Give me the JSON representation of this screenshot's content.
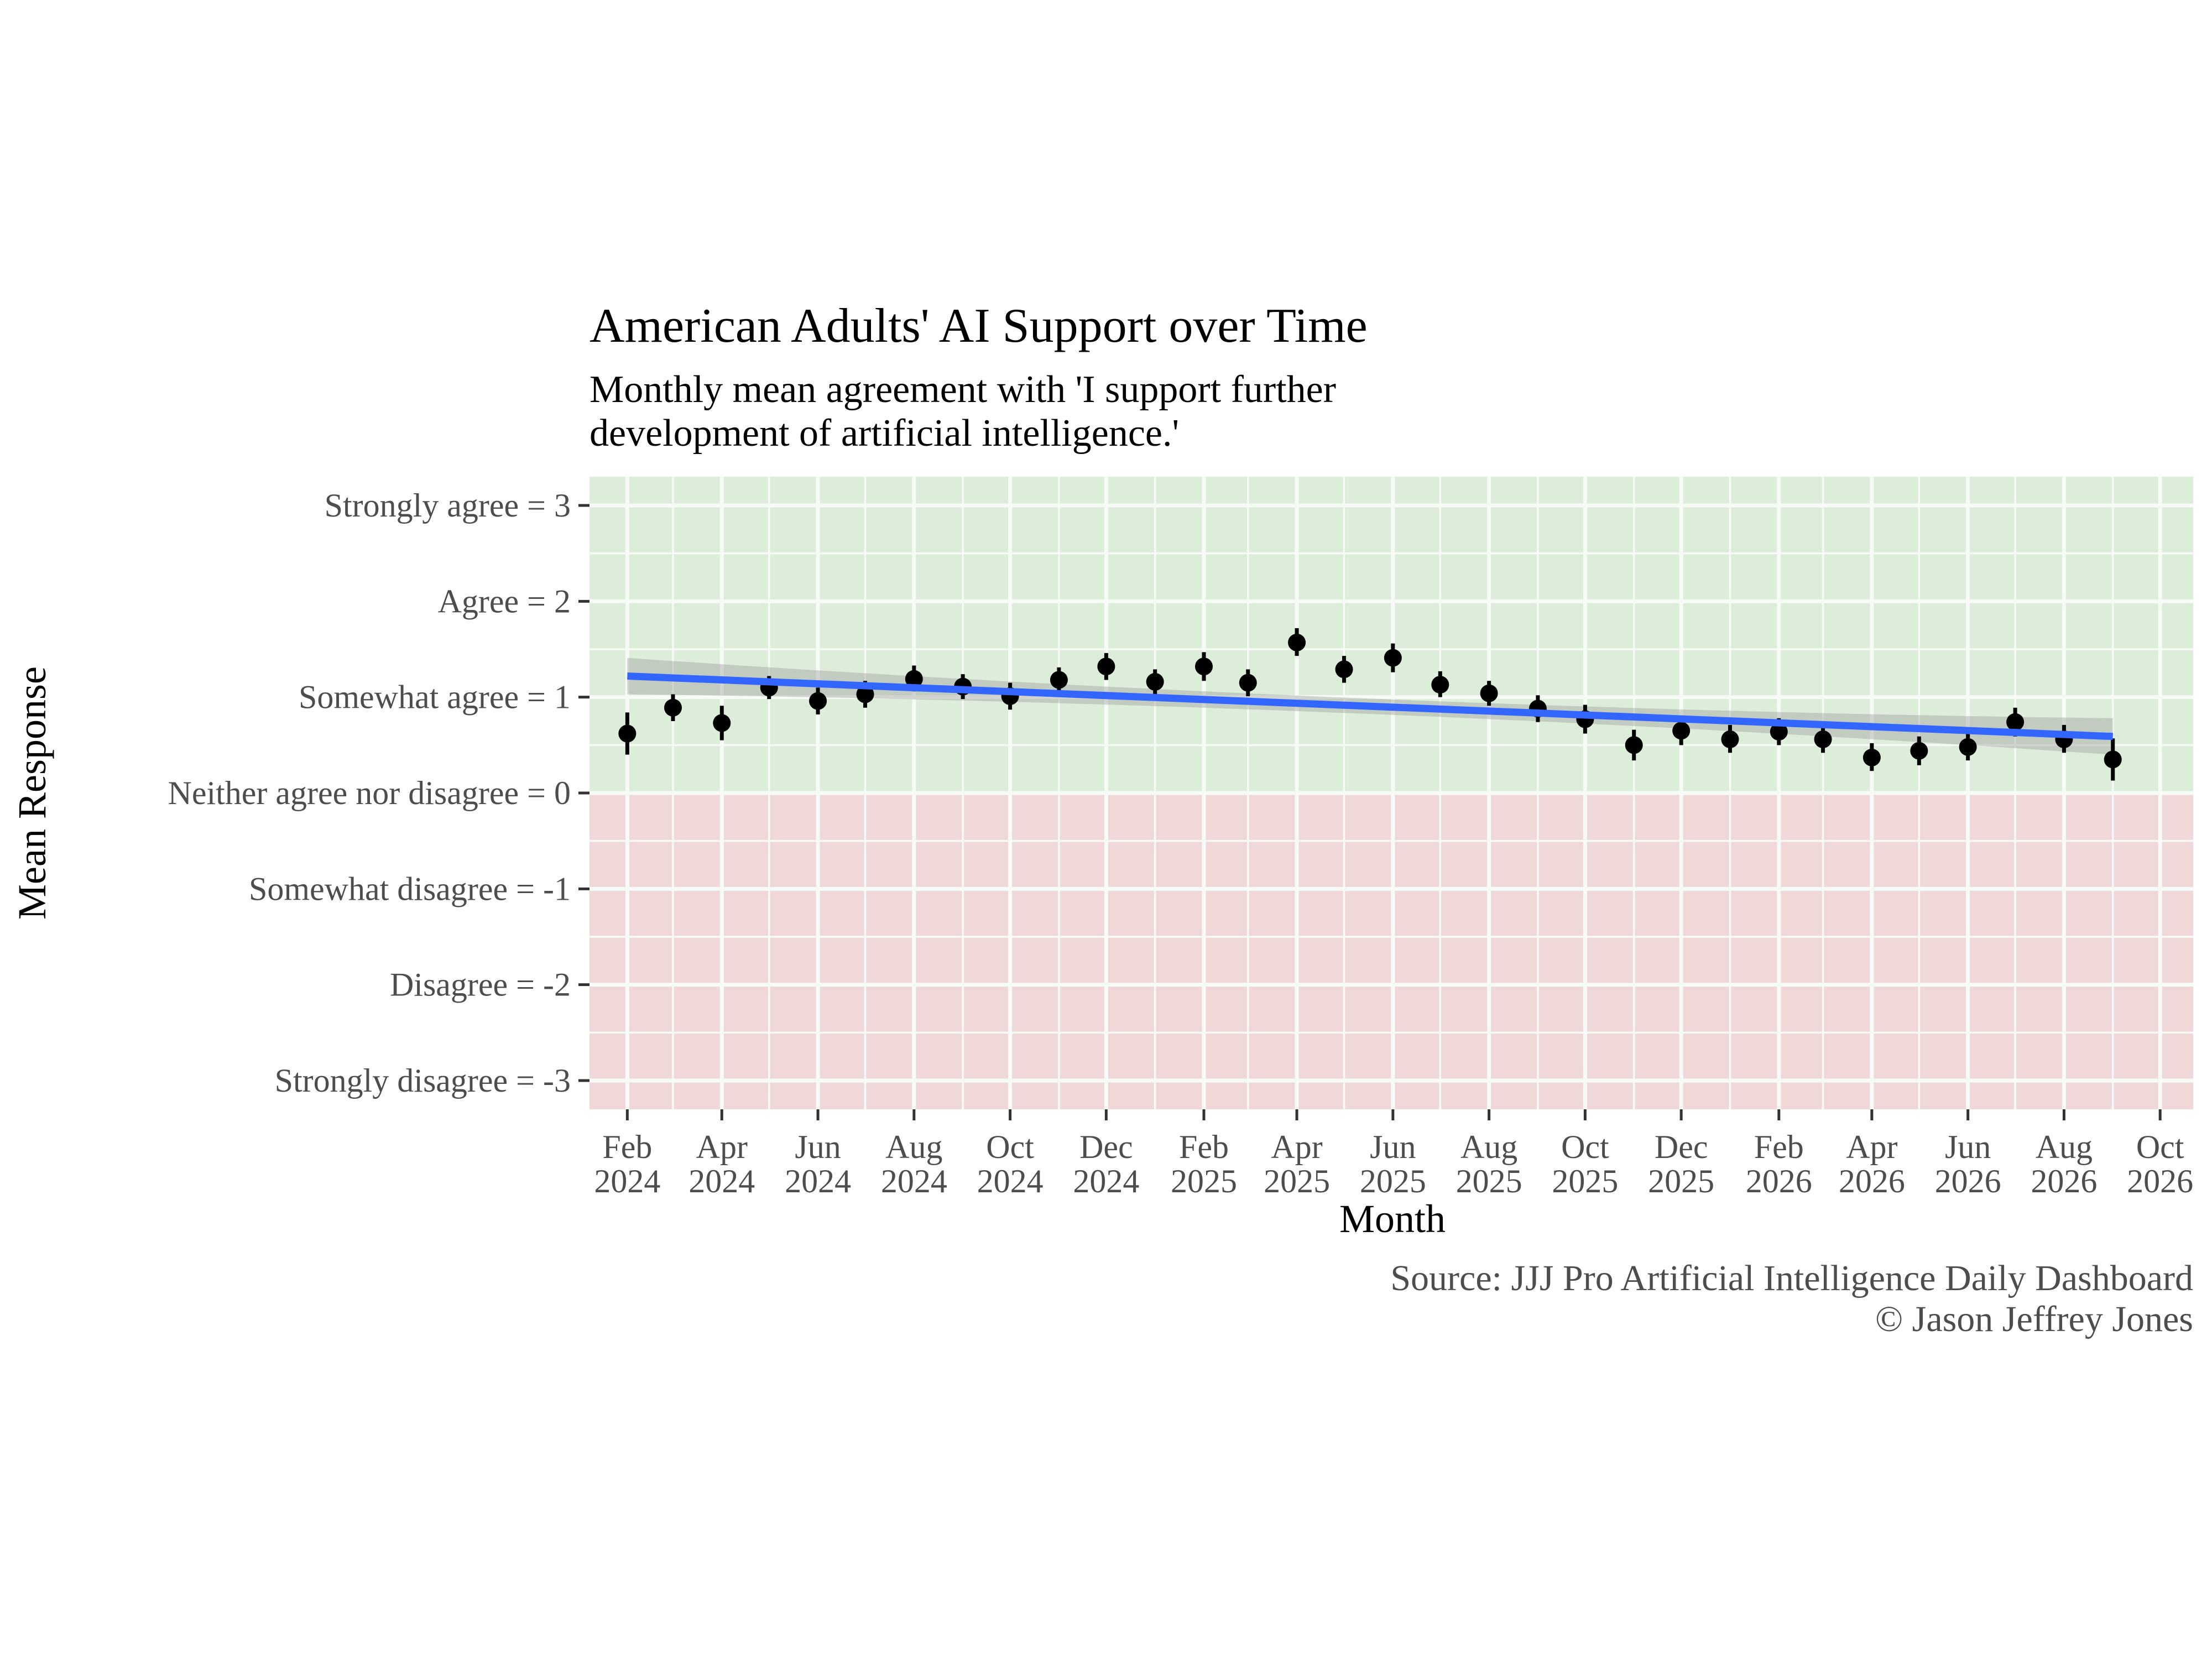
{
  "chart_data": {
    "type": "scatter",
    "title": "American Adults' AI Support over Time",
    "subtitle_lines": [
      "Monthly mean agreement with 'I support further",
      "development of artificial intelligence.'"
    ],
    "xlabel": "Month",
    "ylabel": "Mean Response",
    "caption_lines": [
      "Source: JJJ Pro Artificial Intelligence Daily Dashboard",
      "© Jason Jeffrey Jones"
    ],
    "ylim": [
      -3.3,
      3.3
    ],
    "xlim": [
      "2024-01-08",
      "2026-10-22"
    ],
    "y_ticks": [
      {
        "value": 3,
        "label": "Strongly agree = 3"
      },
      {
        "value": 2,
        "label": "Agree = 2"
      },
      {
        "value": 1,
        "label": "Somewhat agree = 1"
      },
      {
        "value": 0,
        "label": "Neither agree nor disagree = 0"
      },
      {
        "value": -1,
        "label": "Somewhat disagree = -1"
      },
      {
        "value": -2,
        "label": "Disagree = -2"
      },
      {
        "value": -3,
        "label": "Strongly disagree = -3"
      }
    ],
    "x_ticks": [
      {
        "date": "2024-02-01",
        "month": "Feb",
        "year": "2024"
      },
      {
        "date": "2024-04-01",
        "month": "Apr",
        "year": "2024"
      },
      {
        "date": "2024-06-01",
        "month": "Jun",
        "year": "2024"
      },
      {
        "date": "2024-08-01",
        "month": "Aug",
        "year": "2024"
      },
      {
        "date": "2024-10-01",
        "month": "Oct",
        "year": "2024"
      },
      {
        "date": "2024-12-01",
        "month": "Dec",
        "year": "2024"
      },
      {
        "date": "2025-02-01",
        "month": "Feb",
        "year": "2025"
      },
      {
        "date": "2025-04-01",
        "month": "Apr",
        "year": "2025"
      },
      {
        "date": "2025-06-01",
        "month": "Jun",
        "year": "2025"
      },
      {
        "date": "2025-08-01",
        "month": "Aug",
        "year": "2025"
      },
      {
        "date": "2025-10-01",
        "month": "Oct",
        "year": "2025"
      },
      {
        "date": "2025-12-01",
        "month": "Dec",
        "year": "2025"
      },
      {
        "date": "2026-02-01",
        "month": "Feb",
        "year": "2026"
      },
      {
        "date": "2026-04-01",
        "month": "Apr",
        "year": "2026"
      },
      {
        "date": "2026-06-01",
        "month": "Jun",
        "year": "2026"
      },
      {
        "date": "2026-08-01",
        "month": "Aug",
        "year": "2026"
      },
      {
        "date": "2026-10-01",
        "month": "Oct",
        "year": "2026"
      }
    ],
    "points": [
      {
        "month": "2024-02-01",
        "mean": 0.62,
        "lo": 0.4,
        "hi": 0.84
      },
      {
        "month": "2024-03-01",
        "mean": 0.89,
        "lo": 0.75,
        "hi": 1.03
      },
      {
        "month": "2024-04-01",
        "mean": 0.73,
        "lo": 0.55,
        "hi": 0.91
      },
      {
        "month": "2024-05-01",
        "mean": 1.1,
        "lo": 0.98,
        "hi": 1.22
      },
      {
        "month": "2024-06-01",
        "mean": 0.96,
        "lo": 0.82,
        "hi": 1.1
      },
      {
        "month": "2024-07-01",
        "mean": 1.03,
        "lo": 0.89,
        "hi": 1.17
      },
      {
        "month": "2024-08-01",
        "mean": 1.19,
        "lo": 1.06,
        "hi": 1.33
      },
      {
        "month": "2024-09-01",
        "mean": 1.11,
        "lo": 0.98,
        "hi": 1.24
      },
      {
        "month": "2024-10-01",
        "mean": 1.01,
        "lo": 0.87,
        "hi": 1.15
      },
      {
        "month": "2024-11-01",
        "mean": 1.18,
        "lo": 1.05,
        "hi": 1.31
      },
      {
        "month": "2024-12-01",
        "mean": 1.32,
        "lo": 1.18,
        "hi": 1.46
      },
      {
        "month": "2025-01-01",
        "mean": 1.16,
        "lo": 1.03,
        "hi": 1.29
      },
      {
        "month": "2025-02-01",
        "mean": 1.32,
        "lo": 1.17,
        "hi": 1.47
      },
      {
        "month": "2025-03-01",
        "mean": 1.15,
        "lo": 1.01,
        "hi": 1.29
      },
      {
        "month": "2025-04-01",
        "mean": 1.57,
        "lo": 1.43,
        "hi": 1.72
      },
      {
        "month": "2025-05-01",
        "mean": 1.29,
        "lo": 1.15,
        "hi": 1.43
      },
      {
        "month": "2025-06-01",
        "mean": 1.41,
        "lo": 1.26,
        "hi": 1.56
      },
      {
        "month": "2025-07-01",
        "mean": 1.13,
        "lo": 1.0,
        "hi": 1.27
      },
      {
        "month": "2025-08-01",
        "mean": 1.04,
        "lo": 0.91,
        "hi": 1.17
      },
      {
        "month": "2025-09-01",
        "mean": 0.88,
        "lo": 0.74,
        "hi": 1.02
      },
      {
        "month": "2025-10-01",
        "mean": 0.77,
        "lo": 0.62,
        "hi": 0.92
      },
      {
        "month": "2025-11-01",
        "mean": 0.5,
        "lo": 0.34,
        "hi": 0.66
      },
      {
        "month": "2025-12-01",
        "mean": 0.65,
        "lo": 0.5,
        "hi": 0.8
      },
      {
        "month": "2026-01-01",
        "mean": 0.56,
        "lo": 0.42,
        "hi": 0.71
      },
      {
        "month": "2026-02-01",
        "mean": 0.64,
        "lo": 0.5,
        "hi": 0.78
      },
      {
        "month": "2026-03-01",
        "mean": 0.56,
        "lo": 0.42,
        "hi": 0.71
      },
      {
        "month": "2026-04-01",
        "mean": 0.37,
        "lo": 0.23,
        "hi": 0.52
      },
      {
        "month": "2026-05-01",
        "mean": 0.44,
        "lo": 0.29,
        "hi": 0.59
      },
      {
        "month": "2026-06-01",
        "mean": 0.48,
        "lo": 0.34,
        "hi": 0.63
      },
      {
        "month": "2026-07-01",
        "mean": 0.74,
        "lo": 0.59,
        "hi": 0.89
      },
      {
        "month": "2026-08-01",
        "mean": 0.56,
        "lo": 0.42,
        "hi": 0.71
      },
      {
        "month": "2026-09-01",
        "mean": 0.35,
        "lo": 0.13,
        "hi": 0.57
      }
    ],
    "trend": {
      "start": {
        "month": "2024-02-01",
        "y": 1.22
      },
      "end": {
        "month": "2026-09-01",
        "y": 0.59
      },
      "ci_halfwidth_ends": 0.19,
      "ci_halfwidth_mid": 0.08
    },
    "colors": {
      "positive_region": "#dcedd9",
      "negative_region": "#f0d8d9",
      "grid": "#f7fbf6",
      "points": "#000000",
      "trend_line": "#3366ff",
      "confidence_band": "#999999"
    }
  }
}
